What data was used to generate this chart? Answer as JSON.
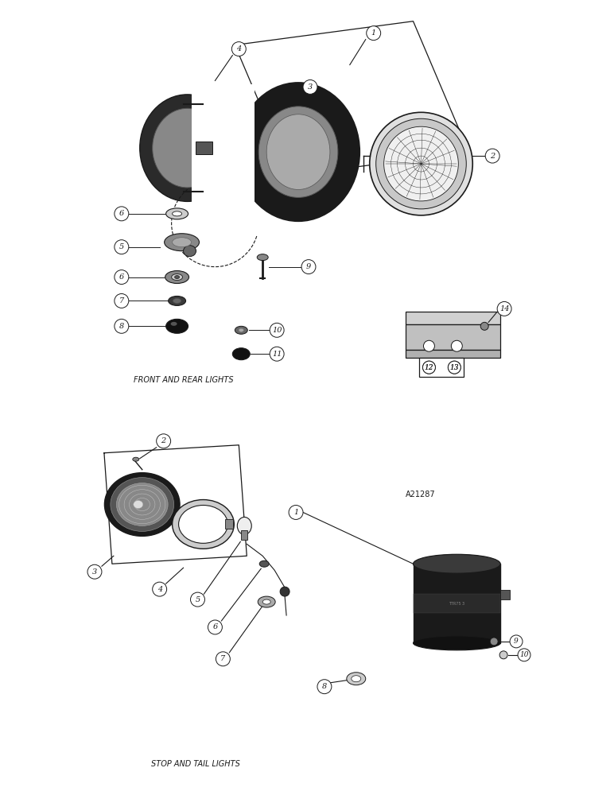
{
  "bg_color": "#ffffff",
  "lc": "#1a1a1a",
  "label1": "FRONT AND REAR LIGHTS",
  "label2": "STOP AND TAIL LIGHTS",
  "label3": "A21287",
  "fig_w": 7.72,
  "fig_h": 10.0,
  "dpi": 100
}
